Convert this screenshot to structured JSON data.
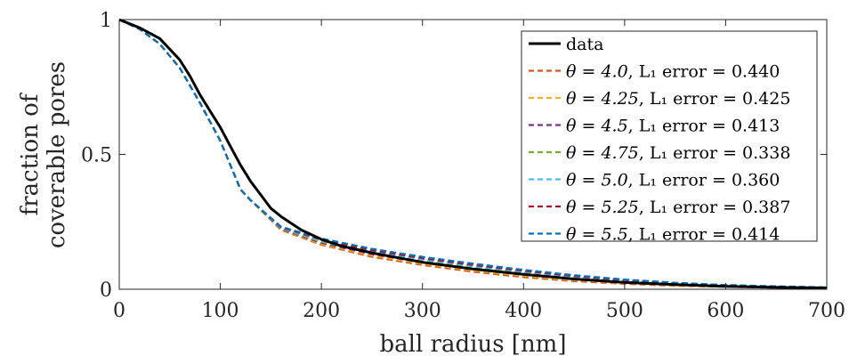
{
  "chart_data": {
    "type": "line",
    "title": "",
    "xlabel": "ball radius [nm]",
    "ylabel_lines": [
      "fraction of",
      "coverable pores"
    ],
    "xlim": [
      0,
      700
    ],
    "ylim": [
      0,
      1
    ],
    "xticks": [
      0,
      100,
      200,
      300,
      400,
      500,
      600,
      700
    ],
    "xtick_labels": [
      "0",
      "100",
      "200",
      "300",
      "400",
      "500",
      "600",
      "700"
    ],
    "yticks": [
      0,
      0.5,
      1
    ],
    "ytick_labels": [
      "0",
      "0.5",
      "1"
    ],
    "grid": false,
    "legend_position": "top-right",
    "series": [
      {
        "name": "data",
        "color": "#000000",
        "dash": "solid",
        "x": [
          0,
          20,
          40,
          50,
          60,
          70,
          80,
          90,
          100,
          110,
          120,
          130,
          140,
          150,
          160,
          180,
          200,
          220,
          250,
          300,
          350,
          400,
          450,
          500,
          550,
          600,
          650,
          700
        ],
        "y": [
          1.0,
          0.97,
          0.93,
          0.89,
          0.85,
          0.79,
          0.72,
          0.66,
          0.6,
          0.53,
          0.46,
          0.4,
          0.35,
          0.3,
          0.27,
          0.22,
          0.185,
          0.16,
          0.135,
          0.1,
          0.075,
          0.055,
          0.038,
          0.025,
          0.017,
          0.011,
          0.007,
          0.005
        ]
      },
      {
        "name_math": "θ = 4.0",
        "error_text": "L₁ error = 0.440",
        "color": "#D95319",
        "dash": "dashed",
        "x": [
          0,
          20,
          40,
          60,
          80,
          100,
          110,
          120,
          130,
          160,
          200,
          250,
          300,
          350,
          400,
          450,
          500,
          550,
          600,
          650,
          700
        ],
        "y": [
          1.0,
          0.965,
          0.91,
          0.82,
          0.69,
          0.55,
          0.46,
          0.37,
          0.33,
          0.22,
          0.165,
          0.12,
          0.09,
          0.065,
          0.045,
          0.03,
          0.02,
          0.013,
          0.009,
          0.006,
          0.004
        ]
      },
      {
        "name_math": "θ = 4.25",
        "error_text": "L₁ error = 0.425",
        "color": "#EDB120",
        "dash": "dashed",
        "x": [
          0,
          20,
          40,
          60,
          80,
          100,
          110,
          120,
          130,
          160,
          200,
          250,
          300,
          350,
          400,
          450,
          500,
          550,
          600,
          650,
          700
        ],
        "y": [
          1.0,
          0.965,
          0.91,
          0.82,
          0.69,
          0.55,
          0.46,
          0.37,
          0.33,
          0.222,
          0.168,
          0.125,
          0.095,
          0.07,
          0.05,
          0.034,
          0.023,
          0.015,
          0.01,
          0.007,
          0.005
        ]
      },
      {
        "name_math": "θ = 4.5",
        "error_text": "L₁ error = 0.413",
        "color": "#7E2F8E",
        "dash": "dashed",
        "x": [
          0,
          20,
          40,
          60,
          80,
          100,
          110,
          120,
          130,
          160,
          200,
          250,
          300,
          350,
          400,
          450,
          500,
          550,
          600,
          650,
          700
        ],
        "y": [
          1.0,
          0.965,
          0.91,
          0.82,
          0.69,
          0.55,
          0.46,
          0.37,
          0.33,
          0.224,
          0.172,
          0.13,
          0.1,
          0.075,
          0.055,
          0.038,
          0.026,
          0.017,
          0.012,
          0.008,
          0.005
        ]
      },
      {
        "name_math": "θ = 4.75",
        "error_text": "L₁ error = 0.338",
        "color": "#77AC30",
        "dash": "dashed",
        "x": [
          0,
          20,
          40,
          60,
          80,
          100,
          110,
          120,
          130,
          160,
          200,
          250,
          300,
          350,
          400,
          450,
          500,
          550,
          600,
          650,
          700
        ],
        "y": [
          1.0,
          0.965,
          0.91,
          0.82,
          0.69,
          0.55,
          0.46,
          0.37,
          0.33,
          0.226,
          0.176,
          0.135,
          0.105,
          0.08,
          0.06,
          0.042,
          0.029,
          0.019,
          0.013,
          0.009,
          0.006
        ]
      },
      {
        "name_math": "θ = 5.0",
        "error_text": "L₁ error = 0.360",
        "color": "#4DBEEE",
        "dash": "dashed",
        "x": [
          0,
          20,
          40,
          60,
          80,
          100,
          110,
          120,
          130,
          160,
          200,
          250,
          300,
          350,
          400,
          450,
          500,
          550,
          600,
          650,
          700
        ],
        "y": [
          1.0,
          0.965,
          0.91,
          0.82,
          0.69,
          0.55,
          0.46,
          0.37,
          0.33,
          0.228,
          0.18,
          0.14,
          0.11,
          0.085,
          0.065,
          0.046,
          0.032,
          0.021,
          0.014,
          0.009,
          0.006
        ]
      },
      {
        "name_math": "θ = 5.25",
        "error_text": "L₁ error = 0.387",
        "color": "#A2142F",
        "dash": "dashed",
        "x": [
          0,
          20,
          40,
          60,
          80,
          100,
          110,
          120,
          130,
          160,
          200,
          250,
          300,
          350,
          400,
          450,
          500,
          550,
          600,
          650,
          700
        ],
        "y": [
          1.0,
          0.965,
          0.91,
          0.82,
          0.69,
          0.55,
          0.46,
          0.37,
          0.33,
          0.23,
          0.184,
          0.145,
          0.115,
          0.09,
          0.068,
          0.049,
          0.034,
          0.022,
          0.015,
          0.01,
          0.006
        ]
      },
      {
        "name_math": "θ = 5.5",
        "error_text": "L₁ error = 0.414",
        "color": "#0072BD",
        "dash": "dashed",
        "x": [
          0,
          20,
          40,
          60,
          80,
          100,
          110,
          120,
          130,
          160,
          200,
          250,
          300,
          350,
          400,
          450,
          500,
          550,
          600,
          650,
          700
        ],
        "y": [
          1.0,
          0.965,
          0.91,
          0.82,
          0.69,
          0.55,
          0.46,
          0.37,
          0.33,
          0.232,
          0.188,
          0.15,
          0.12,
          0.095,
          0.072,
          0.052,
          0.036,
          0.024,
          0.016,
          0.011,
          0.007
        ]
      }
    ]
  }
}
